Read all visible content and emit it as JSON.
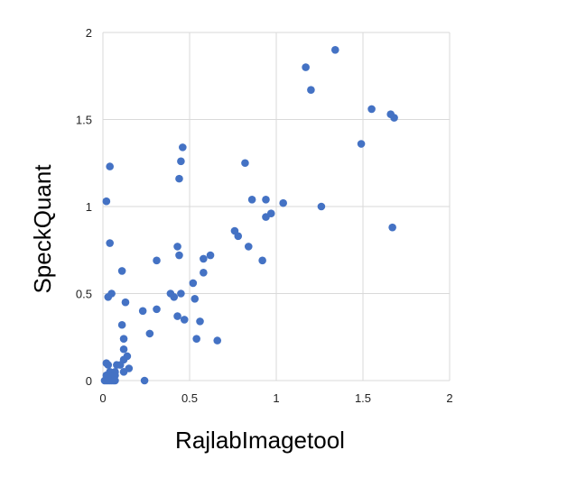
{
  "chart_data": {
    "type": "scatter",
    "xlabel": "RajlabImagetool",
    "ylabel": "SpeckQuant",
    "xlim": [
      0,
      2
    ],
    "ylim": [
      0,
      2
    ],
    "xticks": [
      "0",
      "0.5",
      "1",
      "1.5",
      "2"
    ],
    "yticks": [
      "0",
      "0.5",
      "1",
      "1.5",
      "2"
    ],
    "grid": true,
    "marker_color": "#4472C4",
    "series": [
      {
        "points": [
          [
            1.34,
            1.9
          ],
          [
            1.17,
            1.8
          ],
          [
            1.2,
            1.67
          ],
          [
            1.55,
            1.56
          ],
          [
            1.66,
            1.53
          ],
          [
            1.68,
            1.51
          ],
          [
            1.49,
            1.36
          ],
          [
            0.46,
            1.34
          ],
          [
            0.45,
            1.26
          ],
          [
            0.82,
            1.25
          ],
          [
            0.04,
            1.23
          ],
          [
            0.44,
            1.16
          ],
          [
            0.86,
            1.04
          ],
          [
            0.94,
            1.04
          ],
          [
            1.04,
            1.02
          ],
          [
            0.02,
            1.03
          ],
          [
            1.26,
            1.0
          ],
          [
            0.97,
            0.96
          ],
          [
            0.94,
            0.94
          ],
          [
            1.67,
            0.88
          ],
          [
            0.76,
            0.86
          ],
          [
            0.78,
            0.83
          ],
          [
            0.04,
            0.79
          ],
          [
            0.43,
            0.77
          ],
          [
            0.84,
            0.77
          ],
          [
            0.62,
            0.72
          ],
          [
            0.44,
            0.72
          ],
          [
            0.58,
            0.7
          ],
          [
            0.31,
            0.69
          ],
          [
            0.92,
            0.69
          ],
          [
            0.11,
            0.63
          ],
          [
            0.58,
            0.62
          ],
          [
            0.52,
            0.56
          ],
          [
            0.05,
            0.5
          ],
          [
            0.03,
            0.48
          ],
          [
            0.39,
            0.5
          ],
          [
            0.41,
            0.48
          ],
          [
            0.45,
            0.5
          ],
          [
            0.53,
            0.47
          ],
          [
            0.13,
            0.45
          ],
          [
            0.31,
            0.41
          ],
          [
            0.23,
            0.4
          ],
          [
            0.43,
            0.37
          ],
          [
            0.47,
            0.35
          ],
          [
            0.56,
            0.34
          ],
          [
            0.11,
            0.32
          ],
          [
            0.27,
            0.27
          ],
          [
            0.12,
            0.24
          ],
          [
            0.54,
            0.24
          ],
          [
            0.66,
            0.23
          ],
          [
            0.12,
            0.18
          ],
          [
            0.14,
            0.14
          ],
          [
            0.12,
            0.12
          ],
          [
            0.02,
            0.1
          ],
          [
            0.03,
            0.09
          ],
          [
            0.08,
            0.09
          ],
          [
            0.1,
            0.09
          ],
          [
            0.15,
            0.07
          ],
          [
            0.07,
            0.05
          ],
          [
            0.12,
            0.05
          ],
          [
            0.04,
            0.05
          ],
          [
            0.02,
            0.03
          ],
          [
            0.07,
            0.03
          ],
          [
            0.05,
            0.02
          ],
          [
            0.03,
            0.01
          ],
          [
            0.01,
            0.0
          ],
          [
            0.03,
            0.0
          ],
          [
            0.05,
            0.0
          ],
          [
            0.06,
            0.0
          ],
          [
            0.02,
            0.0
          ],
          [
            0.04,
            0.0
          ],
          [
            0.07,
            0.0
          ],
          [
            0.24,
            0.0
          ]
        ]
      }
    ]
  }
}
